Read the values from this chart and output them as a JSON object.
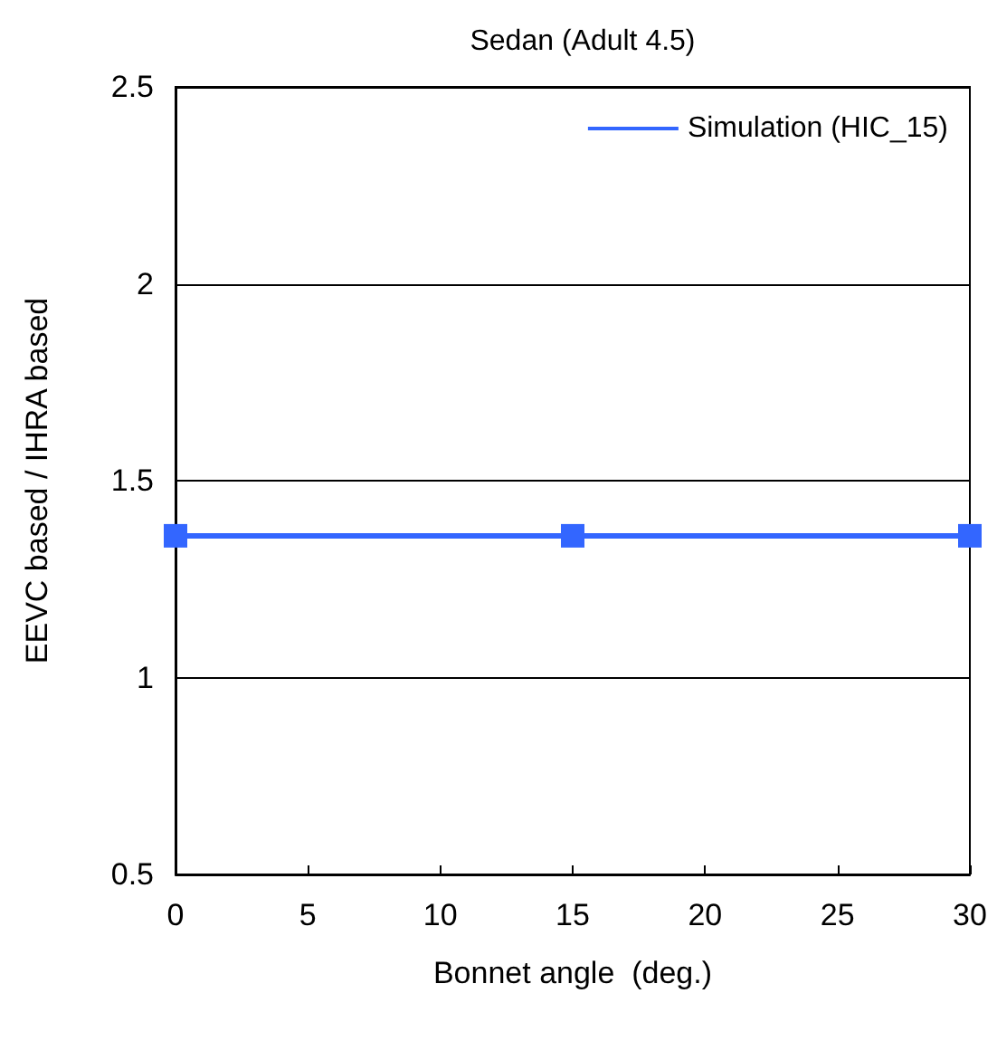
{
  "chart_data": {
    "type": "line",
    "title": "Sedan (Adult 4.5)",
    "xlabel": "Bonnet angle  (deg.)",
    "ylabel": "EEVC based / IHRA based",
    "x": [
      0,
      15,
      30
    ],
    "series": [
      {
        "name": "Simulation (HIC_15)",
        "color": "#3366ff",
        "values": [
          1.36,
          1.36,
          1.36
        ]
      }
    ],
    "xlim": [
      0,
      30
    ],
    "xticks": [
      0,
      5,
      10,
      15,
      20,
      25,
      30
    ],
    "ylim": [
      0.5,
      2.5
    ],
    "yticks": [
      0.5,
      1,
      1.5,
      2,
      2.5
    ],
    "grid": "y",
    "legend": "top right",
    "marker": "square",
    "line_style": "solid"
  }
}
